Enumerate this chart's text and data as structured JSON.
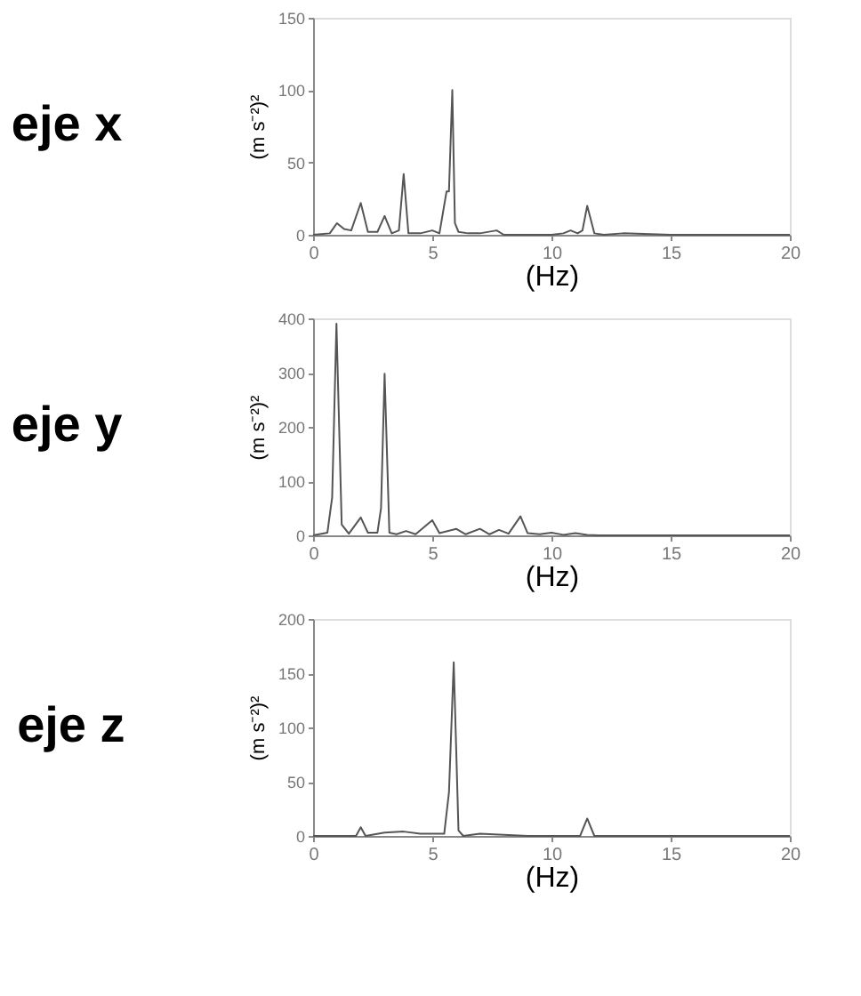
{
  "chart_data": [
    {
      "type": "line",
      "title": "eje x",
      "xlabel": "(Hz)",
      "ylabel": "(m s⁻²)²",
      "xlim": [
        0,
        20
      ],
      "xticks": [
        0,
        5,
        10,
        15,
        20
      ],
      "ylim": [
        0,
        150
      ],
      "yticks": [
        0,
        50,
        100,
        150
      ],
      "grid": false,
      "marker": "none",
      "line_style": "solid",
      "series": [
        {
          "color": "#555555",
          "x": [
            0,
            0.7,
            1.0,
            1.3,
            1.6,
            2.0,
            2.3,
            2.7,
            3.0,
            3.3,
            3.6,
            3.8,
            4.0,
            4.5,
            5.0,
            5.3,
            5.6,
            5.7,
            5.84,
            5.95,
            6.1,
            6.5,
            7.0,
            7.7,
            8.0,
            9.0,
            10.0,
            10.5,
            10.8,
            11.1,
            11.3,
            11.5,
            11.8,
            12.2,
            13.0,
            15.0,
            20.0
          ],
          "values": [
            0,
            1,
            8,
            4,
            3,
            22,
            2,
            2,
            13,
            1,
            3,
            42,
            1,
            1,
            3,
            1,
            30,
            30,
            100,
            8,
            2,
            1,
            1,
            3,
            0,
            0,
            0,
            1,
            3,
            1,
            3,
            20,
            1,
            0,
            1,
            0,
            0
          ]
        }
      ]
    },
    {
      "type": "line",
      "title": "eje y",
      "xlabel": "(Hz)",
      "ylabel": "(m s⁻²)²",
      "xlim": [
        0,
        20
      ],
      "xticks": [
        0,
        5,
        10,
        15,
        20
      ],
      "ylim": [
        0,
        400
      ],
      "yticks": [
        0,
        100,
        200,
        300,
        400
      ],
      "grid": false,
      "marker": "none",
      "line_style": "solid",
      "series": [
        {
          "color": "#555555",
          "x": [
            0,
            0.6,
            0.8,
            0.98,
            1.2,
            1.5,
            2.0,
            2.3,
            2.7,
            2.85,
            3.0,
            3.2,
            3.5,
            3.9,
            4.3,
            5.0,
            5.3,
            6.0,
            6.4,
            7.0,
            7.4,
            7.8,
            8.2,
            8.7,
            9.0,
            9.5,
            10.0,
            10.5,
            11.0,
            11.5,
            12.0,
            20.0
          ],
          "values": [
            0,
            5,
            70,
            390,
            20,
            3,
            33,
            5,
            5,
            50,
            298,
            5,
            2,
            8,
            2,
            28,
            4,
            12,
            2,
            12,
            2,
            10,
            3,
            35,
            4,
            2,
            5,
            1,
            4,
            1,
            0,
            0
          ]
        }
      ]
    },
    {
      "type": "line",
      "title": "eje z",
      "xlabel": "(Hz)",
      "ylabel": "(m s⁻²)²",
      "xlim": [
        0,
        20
      ],
      "xticks": [
        0,
        5,
        10,
        15,
        20
      ],
      "ylim": [
        0,
        200
      ],
      "yticks": [
        0,
        50,
        100,
        150,
        200
      ],
      "grid": false,
      "marker": "none",
      "line_style": "solid",
      "series": [
        {
          "color": "#555555",
          "x": [
            0,
            1.0,
            1.8,
            2.0,
            2.2,
            3.0,
            3.8,
            4.5,
            5.5,
            5.7,
            5.9,
            6.1,
            6.3,
            7.0,
            9.0,
            11.2,
            11.5,
            11.8,
            13.0,
            20.0
          ],
          "values": [
            0,
            0,
            0,
            8,
            0,
            3,
            4,
            2,
            2,
            40,
            160,
            5,
            0,
            2,
            0,
            0,
            16,
            0,
            0,
            0
          ]
        }
      ]
    }
  ]
}
